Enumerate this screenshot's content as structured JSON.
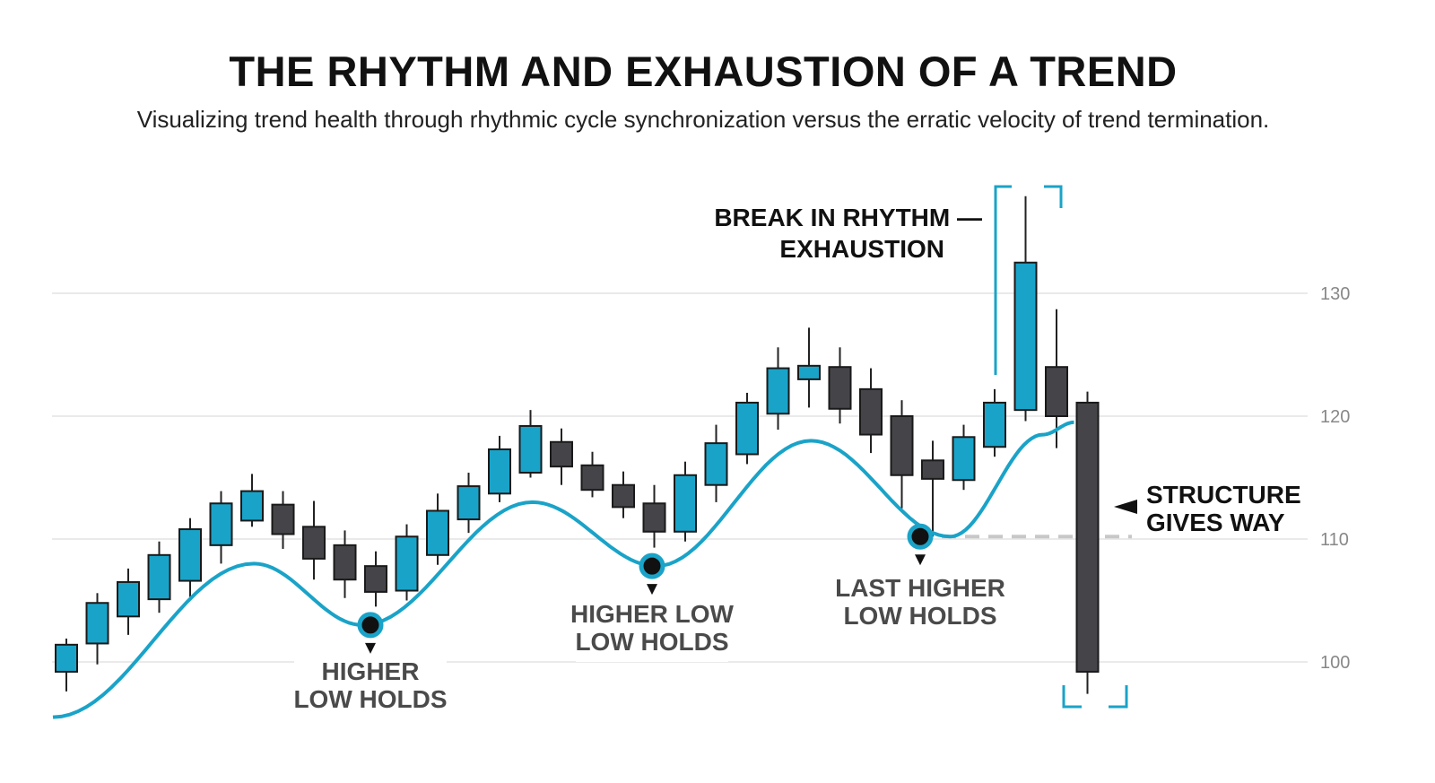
{
  "title": "THE RHYTHM AND EXHAUSTION OF A TREND",
  "subtitle": "Visualizing trend health through rhythmic cycle synchronization versus the erratic velocity of trend termination.",
  "colors": {
    "bull": "#1aa3c8",
    "bear": "#454549",
    "cycle": "#1aa3c8",
    "grid": "#e3e3e3",
    "axis_text": "#888888"
  },
  "chart_data": {
    "type": "candlestick",
    "title": "THE RHYTHM AND EXHAUSTION OF A TREND",
    "y_ticks": [
      100,
      110,
      120,
      130
    ],
    "ylim": [
      93.5,
      140
    ],
    "grid": true,
    "candles": [
      {
        "o": 99.2,
        "h": 101.9,
        "l": 97.6,
        "c": 101.4,
        "dir": "up"
      },
      {
        "o": 101.5,
        "h": 105.6,
        "l": 99.8,
        "c": 104.8,
        "dir": "up"
      },
      {
        "o": 103.7,
        "h": 107.6,
        "l": 102.2,
        "c": 106.5,
        "dir": "up"
      },
      {
        "o": 105.1,
        "h": 109.8,
        "l": 104.0,
        "c": 108.7,
        "dir": "up"
      },
      {
        "o": 106.6,
        "h": 111.7,
        "l": 105.3,
        "c": 110.8,
        "dir": "up"
      },
      {
        "o": 109.5,
        "h": 113.9,
        "l": 108.0,
        "c": 112.9,
        "dir": "up"
      },
      {
        "o": 111.5,
        "h": 115.3,
        "l": 111.0,
        "c": 113.9,
        "dir": "up"
      },
      {
        "o": 112.8,
        "h": 113.9,
        "l": 109.2,
        "c": 110.4,
        "dir": "down"
      },
      {
        "o": 111.0,
        "h": 113.1,
        "l": 106.7,
        "c": 108.4,
        "dir": "down"
      },
      {
        "o": 109.5,
        "h": 110.7,
        "l": 105.2,
        "c": 106.7,
        "dir": "down"
      },
      {
        "o": 107.8,
        "h": 109.0,
        "l": 104.5,
        "c": 105.7,
        "dir": "down"
      },
      {
        "o": 105.8,
        "h": 111.2,
        "l": 105.0,
        "c": 110.2,
        "dir": "up"
      },
      {
        "o": 108.7,
        "h": 113.7,
        "l": 107.9,
        "c": 112.3,
        "dir": "up"
      },
      {
        "o": 111.6,
        "h": 115.4,
        "l": 110.5,
        "c": 114.3,
        "dir": "up"
      },
      {
        "o": 113.7,
        "h": 118.4,
        "l": 113.0,
        "c": 117.3,
        "dir": "up"
      },
      {
        "o": 115.4,
        "h": 120.5,
        "l": 115.0,
        "c": 119.2,
        "dir": "up"
      },
      {
        "o": 117.9,
        "h": 119.0,
        "l": 114.4,
        "c": 115.9,
        "dir": "down"
      },
      {
        "o": 116.0,
        "h": 117.1,
        "l": 113.4,
        "c": 114.0,
        "dir": "down"
      },
      {
        "o": 114.4,
        "h": 115.5,
        "l": 111.7,
        "c": 112.6,
        "dir": "down"
      },
      {
        "o": 112.9,
        "h": 114.4,
        "l": 109.3,
        "c": 110.6,
        "dir": "down"
      },
      {
        "o": 110.6,
        "h": 116.3,
        "l": 109.8,
        "c": 115.2,
        "dir": "up"
      },
      {
        "o": 114.4,
        "h": 119.3,
        "l": 113.0,
        "c": 117.8,
        "dir": "up"
      },
      {
        "o": 116.9,
        "h": 121.9,
        "l": 116.1,
        "c": 121.1,
        "dir": "up"
      },
      {
        "o": 120.2,
        "h": 125.6,
        "l": 118.9,
        "c": 123.9,
        "dir": "up"
      },
      {
        "o": 123.0,
        "h": 127.2,
        "l": 120.7,
        "c": 124.1,
        "dir": "up"
      },
      {
        "o": 124.0,
        "h": 125.6,
        "l": 119.4,
        "c": 120.6,
        "dir": "down"
      },
      {
        "o": 122.2,
        "h": 123.9,
        "l": 117.0,
        "c": 118.5,
        "dir": "down"
      },
      {
        "o": 120.0,
        "h": 121.3,
        "l": 112.5,
        "c": 115.2,
        "dir": "down"
      },
      {
        "o": 116.4,
        "h": 118.0,
        "l": 110.2,
        "c": 114.9,
        "dir": "down"
      },
      {
        "o": 114.8,
        "h": 119.3,
        "l": 114.0,
        "c": 118.3,
        "dir": "up"
      },
      {
        "o": 117.5,
        "h": 122.2,
        "l": 116.7,
        "c": 121.1,
        "dir": "up"
      },
      {
        "o": 120.5,
        "h": 137.9,
        "l": 119.6,
        "c": 132.5,
        "dir": "up"
      },
      {
        "o": 124.0,
        "h": 128.7,
        "l": 117.4,
        "c": 120.0,
        "dir": "down"
      },
      {
        "o": 121.1,
        "h": 122.0,
        "l": 97.4,
        "c": 99.2,
        "dir": "down"
      }
    ],
    "cycle_line": [
      {
        "x": 0,
        "y": 95.5
      },
      {
        "x": 6.5,
        "y": 108.0
      },
      {
        "x": 10.0,
        "y": 103.0
      },
      {
        "x": 15.5,
        "y": 113.0
      },
      {
        "x": 19.5,
        "y": 107.8
      },
      {
        "x": 24.5,
        "y": 118.0
      },
      {
        "x": 29.0,
        "y": 110.2
      },
      {
        "x": 32.0,
        "y": 118.5
      },
      {
        "x": 33.0,
        "y": 119.5
      }
    ],
    "pivots": [
      {
        "x": 10.0,
        "y": 103.0,
        "label_lines": [
          "HIGHER",
          "LOW HOLDS"
        ]
      },
      {
        "x": 19.5,
        "y": 107.8,
        "label_lines": [
          "HIGHER LOW",
          "LOW HOLDS"
        ]
      },
      {
        "x": 29.0,
        "y": 110.2,
        "label_lines": [
          "LAST HIGHER",
          "LOW HOLDS"
        ]
      }
    ],
    "support_level": 110.2,
    "annotations": {
      "exhaustion": [
        "BREAK IN RHYTHM —",
        "EXHAUSTION"
      ],
      "structure": [
        "STRUCTURE",
        "GIVES WAY"
      ]
    }
  }
}
